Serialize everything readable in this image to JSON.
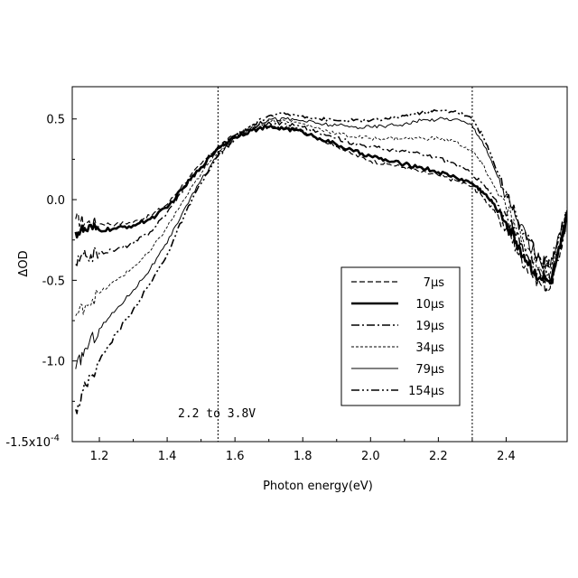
{
  "chart_data": {
    "type": "line",
    "xlabel": "Photon energy(eV)",
    "ylabel": "ΔOD",
    "xlim": [
      1.12,
      2.58
    ],
    "ylim": [
      -1.5,
      0.7
    ],
    "x_ticks": [
      "1.2",
      "1.4",
      "1.6",
      "1.8",
      "2.0",
      "2.2",
      "2.4"
    ],
    "y_ticks": [
      {
        "value": 0.5,
        "label": "0.5"
      },
      {
        "value": 0.0,
        "label": "0.0"
      },
      {
        "value": -0.5,
        "label": "-0.5"
      },
      {
        "value": -1.0,
        "label": "-1.0"
      },
      {
        "value": -1.5,
        "label": "-1.5x10",
        "exp": "-4"
      }
    ],
    "vlines": [
      1.55,
      2.3
    ],
    "annotation": "2.2 to 3.8V",
    "legend_position": "lower-right",
    "grid": false,
    "x": [
      1.13,
      1.16,
      1.2,
      1.25,
      1.3,
      1.35,
      1.4,
      1.45,
      1.5,
      1.55,
      1.6,
      1.65,
      1.7,
      1.75,
      1.8,
      1.85,
      1.9,
      1.95,
      2.0,
      2.05,
      2.1,
      2.15,
      2.2,
      2.25,
      2.3,
      2.33,
      2.36,
      2.4,
      2.43,
      2.46,
      2.5,
      2.53,
      2.56,
      2.58
    ],
    "series": [
      {
        "name": "7μs",
        "style": "dashed",
        "values": [
          -0.12,
          -0.14,
          -0.15,
          -0.15,
          -0.14,
          -0.1,
          -0.03,
          0.1,
          0.22,
          0.33,
          0.4,
          0.44,
          0.45,
          0.45,
          0.43,
          0.38,
          0.33,
          0.28,
          0.24,
          0.22,
          0.2,
          0.17,
          0.15,
          0.12,
          0.08,
          0.02,
          -0.06,
          -0.18,
          -0.3,
          -0.42,
          -0.52,
          -0.55,
          -0.32,
          -0.1
        ]
      },
      {
        "name": "10μs",
        "style": "thick",
        "values": [
          -0.2,
          -0.19,
          -0.19,
          -0.18,
          -0.16,
          -0.12,
          -0.05,
          0.08,
          0.2,
          0.32,
          0.39,
          0.43,
          0.45,
          0.44,
          0.42,
          0.38,
          0.34,
          0.3,
          0.27,
          0.24,
          0.22,
          0.2,
          0.17,
          0.14,
          0.1,
          0.05,
          -0.02,
          -0.14,
          -0.26,
          -0.38,
          -0.48,
          -0.52,
          -0.3,
          -0.12
        ]
      },
      {
        "name": "19μs",
        "style": "dash-dot",
        "values": [
          -0.4,
          -0.35,
          -0.33,
          -0.31,
          -0.27,
          -0.2,
          -0.08,
          0.07,
          0.2,
          0.32,
          0.4,
          0.45,
          0.48,
          0.47,
          0.45,
          0.41,
          0.38,
          0.35,
          0.33,
          0.31,
          0.3,
          0.28,
          0.26,
          0.22,
          0.16,
          0.1,
          0.02,
          -0.1,
          -0.22,
          -0.34,
          -0.46,
          -0.5,
          -0.28,
          -0.1
        ]
      },
      {
        "name": "34μs",
        "style": "dotted",
        "values": [
          -0.72,
          -0.65,
          -0.58,
          -0.5,
          -0.42,
          -0.32,
          -0.17,
          0.0,
          0.16,
          0.3,
          0.39,
          0.45,
          0.49,
          0.49,
          0.47,
          0.44,
          0.41,
          0.39,
          0.38,
          0.38,
          0.38,
          0.38,
          0.38,
          0.36,
          0.3,
          0.22,
          0.1,
          -0.05,
          -0.18,
          -0.3,
          -0.42,
          -0.46,
          -0.25,
          -0.08
        ]
      },
      {
        "name": "79μs",
        "style": "thin",
        "values": [
          -1.05,
          -0.92,
          -0.8,
          -0.68,
          -0.56,
          -0.43,
          -0.27,
          -0.06,
          0.12,
          0.28,
          0.38,
          0.45,
          0.5,
          0.5,
          0.49,
          0.47,
          0.46,
          0.45,
          0.45,
          0.46,
          0.47,
          0.49,
          0.5,
          0.5,
          0.46,
          0.36,
          0.22,
          0.03,
          -0.12,
          -0.25,
          -0.38,
          -0.42,
          -0.22,
          -0.06
        ]
      },
      {
        "name": "154μs",
        "style": "dash-dot-dot",
        "values": [
          -1.3,
          -1.15,
          -1.0,
          -0.83,
          -0.68,
          -0.52,
          -0.34,
          -0.1,
          0.1,
          0.27,
          0.38,
          0.46,
          0.52,
          0.53,
          0.52,
          0.5,
          0.49,
          0.49,
          0.49,
          0.5,
          0.52,
          0.54,
          0.55,
          0.55,
          0.5,
          0.4,
          0.25,
          0.05,
          -0.1,
          -0.24,
          -0.36,
          -0.4,
          -0.2,
          -0.05
        ]
      }
    ]
  }
}
